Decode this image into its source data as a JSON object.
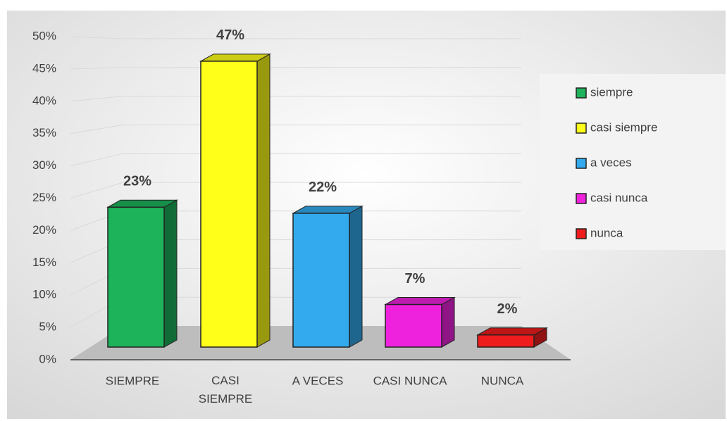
{
  "chart_data": {
    "type": "bar3d",
    "categories": [
      "SIEMPRE",
      "CASI SIEMPRE",
      "A VECES",
      "CASI NUNCA",
      "NUNCA"
    ],
    "values": [
      23,
      47,
      22,
      7,
      2
    ],
    "value_labels": [
      "23%",
      "47%",
      "22%",
      "7%",
      "2%"
    ],
    "colors": [
      "#1db35a",
      "#ffff1a",
      "#33aaee",
      "#ee22dd",
      "#ee1c1c"
    ],
    "legend": [
      "siempre",
      "casi siempre",
      "a veces",
      "casi nunca",
      "nunca"
    ],
    "ylim": [
      0,
      50
    ],
    "yticks": [
      {
        "value": 0,
        "label": "0%"
      },
      {
        "value": 5,
        "label": "5%"
      },
      {
        "value": 10,
        "label": "10%"
      },
      {
        "value": 15,
        "label": "15%"
      },
      {
        "value": 20,
        "label": "20%"
      },
      {
        "value": 25,
        "label": "25%"
      },
      {
        "value": 30,
        "label": "30%"
      },
      {
        "value": 35,
        "label": "35%"
      },
      {
        "value": 40,
        "label": "40%"
      },
      {
        "value": 45,
        "label": "45%"
      },
      {
        "value": 50,
        "label": "50%"
      }
    ],
    "grid": true
  }
}
